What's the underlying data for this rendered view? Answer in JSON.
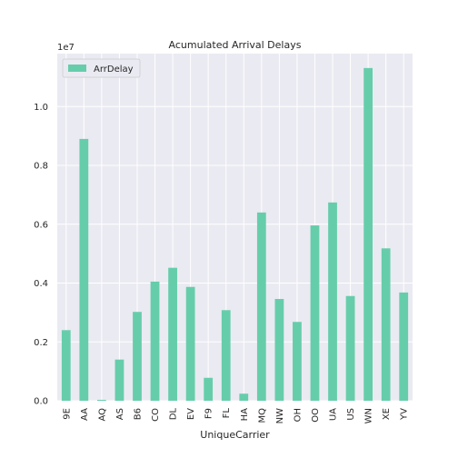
{
  "chart_data": {
    "type": "bar",
    "title": "Acumulated Arrival Delays",
    "xlabel": "UniqueCarrier",
    "ylabel": "",
    "scale_label": "1e7",
    "categories": [
      "9E",
      "AA",
      "AQ",
      "AS",
      "B6",
      "CO",
      "DL",
      "EV",
      "F9",
      "FL",
      "HA",
      "MQ",
      "NW",
      "OH",
      "OO",
      "UA",
      "US",
      "WN",
      "XE",
      "YV"
    ],
    "series": [
      {
        "name": "ArrDelay",
        "values": [
          0.24,
          0.89,
          0.003,
          0.14,
          0.302,
          0.405,
          0.452,
          0.387,
          0.078,
          0.308,
          0.024,
          0.64,
          0.346,
          0.268,
          0.596,
          0.674,
          0.356,
          1.131,
          0.518,
          0.368
        ]
      }
    ],
    "ylim": [
      0,
      1.18
    ],
    "yticks": [
      "0.0",
      "0.2",
      "0.4",
      "0.6",
      "0.8",
      "1.0"
    ],
    "ytick_values": [
      0.0,
      0.2,
      0.4,
      0.6,
      0.8,
      1.0
    ],
    "grid": true,
    "legend_position": "top-left",
    "colors": {
      "bar": "#66cdaa",
      "plot_background": "#eaeaf2",
      "grid": "#ffffff",
      "text": "#262626"
    }
  }
}
